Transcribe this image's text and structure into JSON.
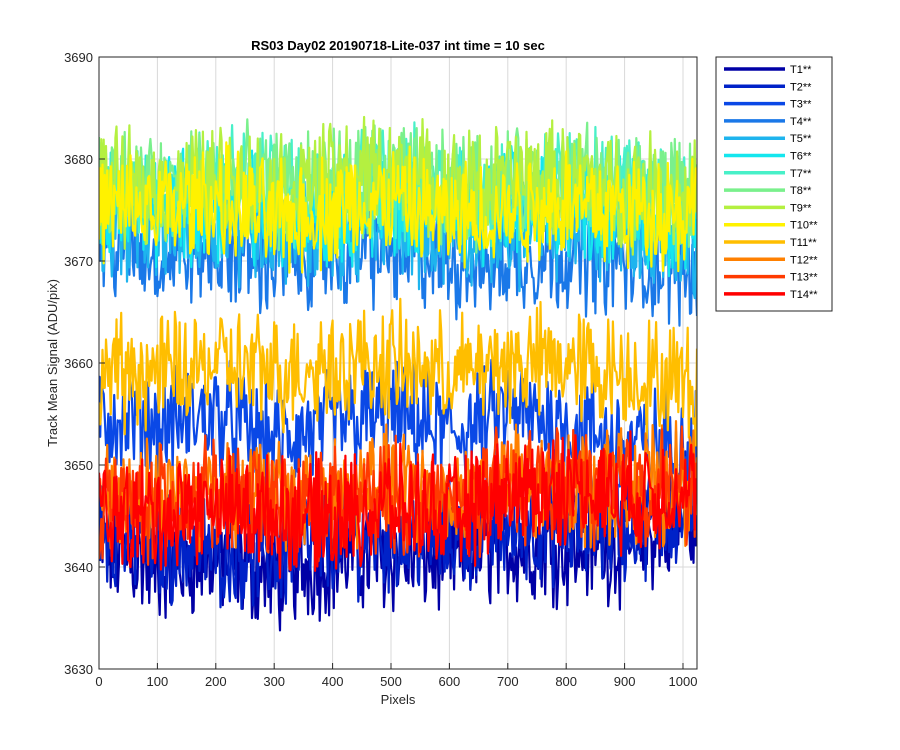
{
  "chart_data": {
    "type": "line",
    "title": "RS03 Day02 20190718-Lite-037 int time = 10 sec",
    "xlabel": "Pixels",
    "ylabel": "Track Mean Signal (ADU/pix)",
    "xlim": [
      0,
      1024
    ],
    "ylim": [
      3630,
      3690
    ],
    "xticks": [
      0,
      100,
      200,
      300,
      400,
      500,
      600,
      700,
      800,
      900,
      1000
    ],
    "yticks": [
      3630,
      3640,
      3650,
      3660,
      3670,
      3680,
      3690
    ],
    "xtick_labels": [
      "0",
      "100",
      "200",
      "300",
      "400",
      "500",
      "600",
      "700",
      "800",
      "900",
      "1000"
    ],
    "ytick_labels": [
      "3630",
      "3640",
      "3650",
      "3660",
      "3670",
      "3680",
      "3690"
    ],
    "grid": true,
    "legend_position": "outside-right",
    "series": [
      {
        "name": "T1**",
        "color": "#0000a6",
        "x": [
          0,
          100,
          200,
          300,
          400,
          500,
          600,
          700,
          800,
          900,
          1024
        ],
        "values": [
          3642,
          3640,
          3641,
          3639,
          3641,
          3641,
          3641,
          3642,
          3642,
          3642,
          3645
        ]
      },
      {
        "name": "T2**",
        "color": "#0022c8",
        "x": [
          0,
          100,
          200,
          300,
          400,
          500,
          600,
          700,
          800,
          900,
          1024
        ],
        "values": [
          3644,
          3642,
          3642,
          3641,
          3643,
          3643,
          3643,
          3644,
          3644,
          3644,
          3646
        ]
      },
      {
        "name": "T3**",
        "color": "#0a48e6",
        "x": [
          0,
          100,
          200,
          300,
          400,
          500,
          600,
          700,
          800,
          900,
          1024
        ],
        "values": [
          3655,
          3654,
          3655,
          3652,
          3654,
          3655,
          3653,
          3655,
          3654,
          3652,
          3652
        ]
      },
      {
        "name": "T4**",
        "color": "#1a78e8",
        "x": [
          0,
          100,
          200,
          300,
          400,
          500,
          600,
          700,
          800,
          900,
          1024
        ],
        "values": [
          3672,
          3671,
          3671,
          3670,
          3671,
          3671,
          3670,
          3670,
          3671,
          3670,
          3669
        ]
      },
      {
        "name": "T5**",
        "color": "#1eb4ee",
        "x": [
          0,
          100,
          200,
          300,
          400,
          500,
          600,
          700,
          800,
          900,
          1024
        ],
        "values": [
          3674,
          3673,
          3674,
          3673,
          3673,
          3674,
          3673,
          3673,
          3674,
          3673,
          3672
        ]
      },
      {
        "name": "T6**",
        "color": "#14e6ee",
        "x": [
          0,
          100,
          200,
          300,
          400,
          500,
          600,
          700,
          800,
          900,
          1024
        ],
        "values": [
          3676,
          3675,
          3676,
          3675,
          3675,
          3676,
          3675,
          3675,
          3676,
          3675,
          3674
        ]
      },
      {
        "name": "T7**",
        "color": "#48f0c8",
        "x": [
          0,
          100,
          200,
          300,
          400,
          500,
          600,
          700,
          800,
          900,
          1024
        ],
        "values": [
          3677,
          3677,
          3678,
          3677,
          3677,
          3678,
          3677,
          3677,
          3678,
          3677,
          3676
        ]
      },
      {
        "name": "T8**",
        "color": "#7af08c",
        "x": [
          0,
          100,
          200,
          300,
          400,
          500,
          600,
          700,
          800,
          900,
          1024
        ],
        "values": [
          3678,
          3677,
          3678,
          3677,
          3678,
          3678,
          3677,
          3677,
          3678,
          3677,
          3677
        ]
      },
      {
        "name": "T9**",
        "color": "#b4f040",
        "x": [
          0,
          100,
          200,
          300,
          400,
          500,
          600,
          700,
          800,
          900,
          1024
        ],
        "values": [
          3677,
          3677,
          3678,
          3677,
          3678,
          3679,
          3677,
          3678,
          3678,
          3677,
          3677
        ]
      },
      {
        "name": "T10**",
        "color": "#fff200",
        "x": [
          0,
          100,
          200,
          300,
          400,
          500,
          600,
          700,
          800,
          900,
          1024
        ],
        "values": [
          3675,
          3675,
          3676,
          3674,
          3675,
          3676,
          3674,
          3675,
          3676,
          3675,
          3675
        ]
      },
      {
        "name": "T11**",
        "color": "#ffbe00",
        "x": [
          0,
          100,
          200,
          300,
          400,
          500,
          600,
          700,
          800,
          900,
          1024
        ],
        "values": [
          3659,
          3659,
          3660,
          3659,
          3660,
          3660,
          3659,
          3660,
          3660,
          3659,
          3658
        ]
      },
      {
        "name": "T12**",
        "color": "#ff8000",
        "x": [
          0,
          100,
          200,
          300,
          400,
          500,
          600,
          700,
          800,
          900,
          1024
        ],
        "values": [
          3647,
          3647,
          3648,
          3647,
          3647,
          3648,
          3647,
          3648,
          3648,
          3648,
          3648
        ]
      },
      {
        "name": "T13**",
        "color": "#ff3a00",
        "x": [
          0,
          100,
          200,
          300,
          400,
          500,
          600,
          700,
          800,
          900,
          1024
        ],
        "values": [
          3646,
          3646,
          3647,
          3646,
          3646,
          3647,
          3646,
          3648,
          3648,
          3648,
          3648
        ]
      },
      {
        "name": "T14**",
        "color": "#ff0000",
        "x": [
          0,
          100,
          200,
          300,
          400,
          500,
          600,
          700,
          800,
          900,
          1024
        ],
        "values": [
          3645,
          3645,
          3646,
          3645,
          3645,
          3646,
          3645,
          3647,
          3648,
          3647,
          3648
        ]
      }
    ]
  }
}
